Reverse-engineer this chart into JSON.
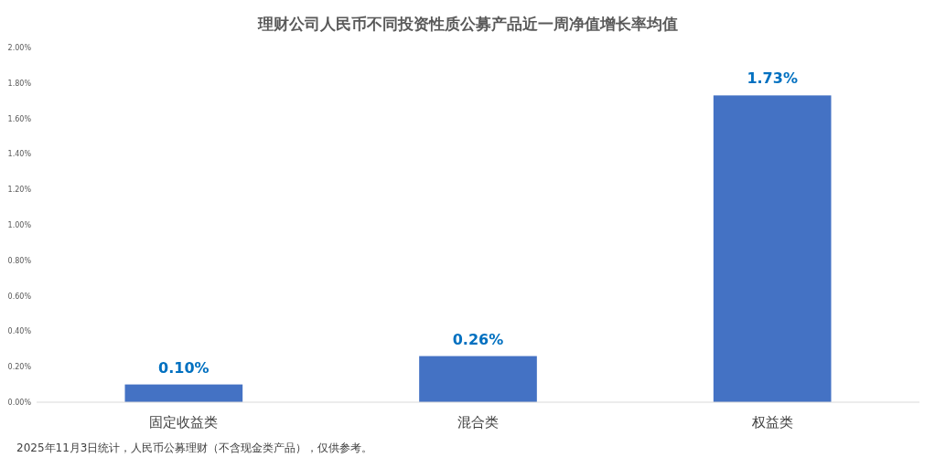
{
  "chart_data": {
    "type": "bar",
    "title": "理财公司人民币不同投资性质公募产品近一周净值增长率均值",
    "categories": [
      "固定收益类",
      "混合类",
      "权益类"
    ],
    "values": [
      0.1,
      0.26,
      1.73
    ],
    "color": "#4472c4",
    "value_labels": [
      "0.10%",
      "0.26%",
      "1.73%"
    ],
    "ylim": [
      0,
      2
    ],
    "yticks": [
      {
        "value": 0,
        "label": "0.00%"
      },
      {
        "value": 0.2,
        "label": "0.20%"
      },
      {
        "value": 0.4,
        "label": "0.40%"
      },
      {
        "value": 0.6,
        "label": "0.60%"
      },
      {
        "value": 0.8,
        "label": "0.80%"
      },
      {
        "value": 1.0,
        "label": "1.00%"
      },
      {
        "value": 1.2,
        "label": "1.20%"
      },
      {
        "value": 1.4,
        "label": "1.40%"
      },
      {
        "value": 1.6,
        "label": "1.60%"
      },
      {
        "value": 1.8,
        "label": "1.80%"
      },
      {
        "value": 2.0,
        "label": "2.00%"
      }
    ],
    "annotations": [
      "2025年11月3日统计，人民币公募理财（不含现金类产品），仅供参考。"
    ]
  }
}
